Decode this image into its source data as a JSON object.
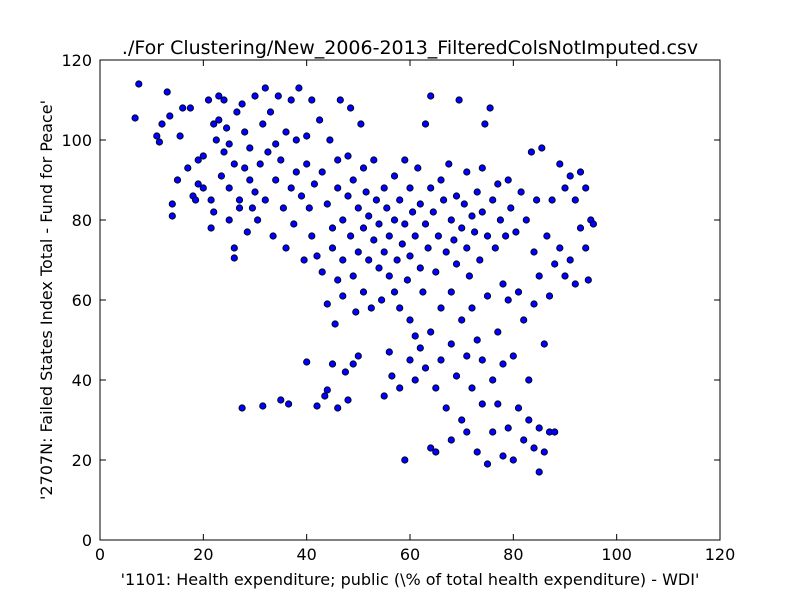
{
  "chart_data": {
    "type": "scatter",
    "title": "./For Clustering/New_2006-2013_FilteredColsNotImputed.csv",
    "xlabel": "'1101: Health expenditure; public  (\\% of total health expenditure) - WDI'",
    "ylabel": "'2707N: Failed States Index Total - Fund for Peace'",
    "xlim": [
      0,
      120
    ],
    "ylim": [
      0,
      120
    ],
    "xticks": [
      0,
      20,
      40,
      60,
      80,
      100,
      120
    ],
    "yticks": [
      0,
      20,
      40,
      60,
      80,
      100,
      120
    ],
    "grid": false,
    "marker_color": "#0000ff",
    "marker_edge_color": "#000000",
    "series": [
      {
        "points": [
          [
            6.8,
            105.5
          ],
          [
            7.5,
            114
          ],
          [
            11,
            101
          ],
          [
            11.5,
            99.5
          ],
          [
            12,
            104
          ],
          [
            13,
            112
          ],
          [
            13.5,
            106
          ],
          [
            14,
            84
          ],
          [
            14,
            81
          ],
          [
            15,
            90
          ],
          [
            15.5,
            101
          ],
          [
            16,
            108
          ],
          [
            17,
            93
          ],
          [
            17.5,
            108
          ],
          [
            18,
            86
          ],
          [
            18.5,
            85
          ],
          [
            19,
            95
          ],
          [
            19,
            89
          ],
          [
            20,
            96
          ],
          [
            20,
            88
          ],
          [
            21,
            110
          ],
          [
            21.5,
            85
          ],
          [
            21.5,
            78
          ],
          [
            22,
            104
          ],
          [
            22,
            82
          ],
          [
            22.5,
            100
          ],
          [
            23,
            111
          ],
          [
            23,
            105
          ],
          [
            23.5,
            91
          ],
          [
            24,
            110
          ],
          [
            24,
            97
          ],
          [
            24.5,
            103
          ],
          [
            25,
            99
          ],
          [
            25,
            88
          ],
          [
            25,
            80
          ],
          [
            26,
            94
          ],
          [
            26,
            73
          ],
          [
            26,
            70.5
          ],
          [
            26.5,
            107
          ],
          [
            27,
            85
          ],
          [
            27,
            83
          ],
          [
            27.5,
            109
          ],
          [
            27.5,
            33
          ],
          [
            28,
            102
          ],
          [
            28,
            93
          ],
          [
            28.5,
            77
          ],
          [
            29,
            98
          ],
          [
            29,
            90
          ],
          [
            29.5,
            83
          ],
          [
            30,
            111
          ],
          [
            30,
            87
          ],
          [
            30.5,
            80
          ],
          [
            31,
            94
          ],
          [
            31.5,
            104
          ],
          [
            31.5,
            33.5
          ],
          [
            32,
            113
          ],
          [
            32,
            85
          ],
          [
            32.5,
            97
          ],
          [
            33,
            107
          ],
          [
            33.5,
            76
          ],
          [
            34,
            99
          ],
          [
            34,
            90
          ],
          [
            34.5,
            111
          ],
          [
            35,
            95
          ],
          [
            35,
            35
          ],
          [
            35.5,
            83
          ],
          [
            36,
            102
          ],
          [
            36,
            73
          ],
          [
            36.5,
            34
          ],
          [
            37,
            110
          ],
          [
            37,
            88
          ],
          [
            37.5,
            79
          ],
          [
            38,
            100
          ],
          [
            38,
            92
          ],
          [
            38.5,
            113
          ],
          [
            39,
            86
          ],
          [
            39.5,
            70
          ],
          [
            40,
            101
          ],
          [
            40,
            94
          ],
          [
            40,
            44.5
          ],
          [
            40.5,
            83
          ],
          [
            41,
            110
          ],
          [
            41,
            76
          ],
          [
            41.5,
            89
          ],
          [
            42,
            71
          ],
          [
            42,
            33.5
          ],
          [
            42.5,
            105
          ],
          [
            43,
            92
          ],
          [
            43,
            67
          ],
          [
            43.5,
            36
          ],
          [
            44,
            84
          ],
          [
            44,
            59
          ],
          [
            44,
            37.5
          ],
          [
            44.5,
            100
          ],
          [
            45,
            78
          ],
          [
            45,
            73
          ],
          [
            45,
            44
          ],
          [
            45.5,
            54
          ],
          [
            46,
            95
          ],
          [
            46,
            88
          ],
          [
            46,
            65
          ],
          [
            46,
            33
          ],
          [
            46.5,
            110
          ],
          [
            47,
            80
          ],
          [
            47,
            70
          ],
          [
            47,
            61
          ],
          [
            47.5,
            42
          ],
          [
            48,
            96
          ],
          [
            48,
            86
          ],
          [
            48,
            35
          ],
          [
            48.5,
            108
          ],
          [
            48.5,
            76
          ],
          [
            49,
            90
          ],
          [
            49,
            66
          ],
          [
            49,
            44
          ],
          [
            49.5,
            57
          ],
          [
            50,
            83
          ],
          [
            50,
            72
          ],
          [
            50,
            46
          ],
          [
            50.5,
            104
          ],
          [
            51,
            93
          ],
          [
            51,
            78
          ],
          [
            51,
            62
          ],
          [
            51.5,
            87
          ],
          [
            52,
            70
          ],
          [
            52,
            81
          ],
          [
            52.5,
            58
          ],
          [
            53,
            75
          ],
          [
            53,
            95
          ],
          [
            53.5,
            85
          ],
          [
            54,
            68
          ],
          [
            54,
            79
          ],
          [
            54.5,
            60
          ],
          [
            55,
            88
          ],
          [
            55,
            72
          ],
          [
            55,
            36
          ],
          [
            55.5,
            83
          ],
          [
            56,
            76
          ],
          [
            56,
            66
          ],
          [
            56,
            47
          ],
          [
            56.5,
            41
          ],
          [
            57,
            91
          ],
          [
            57,
            80
          ],
          [
            57,
            62
          ],
          [
            57.5,
            70
          ],
          [
            58,
            85
          ],
          [
            58,
            58
          ],
          [
            58,
            38
          ],
          [
            58.5,
            74
          ],
          [
            59,
            95
          ],
          [
            59,
            79
          ],
          [
            59,
            20
          ],
          [
            59.5,
            65
          ],
          [
            60,
            88
          ],
          [
            60,
            71
          ],
          [
            60,
            55
          ],
          [
            60,
            45
          ],
          [
            60.5,
            82
          ],
          [
            61,
            76
          ],
          [
            61,
            51
          ],
          [
            61,
            40
          ],
          [
            61.5,
            93
          ],
          [
            62,
            84
          ],
          [
            62,
            68
          ],
          [
            62,
            48
          ],
          [
            62.5,
            62
          ],
          [
            63,
            104
          ],
          [
            63,
            79
          ],
          [
            63,
            43
          ],
          [
            63.5,
            73
          ],
          [
            64,
            111
          ],
          [
            64,
            88
          ],
          [
            64,
            52
          ],
          [
            64,
            23
          ],
          [
            64.5,
            82
          ],
          [
            65,
            67
          ],
          [
            65,
            38
          ],
          [
            65,
            22
          ],
          [
            65.5,
            76
          ],
          [
            66,
            90
          ],
          [
            66,
            58
          ],
          [
            66,
            45
          ],
          [
            66.5,
            85
          ],
          [
            67,
            72
          ],
          [
            67,
            33
          ],
          [
            67.5,
            94
          ],
          [
            68,
            80
          ],
          [
            68,
            62
          ],
          [
            68,
            49
          ],
          [
            68,
            25
          ],
          [
            68.5,
            75
          ],
          [
            69,
            86
          ],
          [
            69,
            69
          ],
          [
            69,
            41
          ],
          [
            69.5,
            110
          ],
          [
            70,
            78
          ],
          [
            70,
            55
          ],
          [
            70,
            30
          ],
          [
            70.5,
            84
          ],
          [
            71,
            92
          ],
          [
            71,
            73
          ],
          [
            71,
            46
          ],
          [
            71,
            27
          ],
          [
            71.5,
            66
          ],
          [
            72,
            81
          ],
          [
            72,
            58
          ],
          [
            72,
            38
          ],
          [
            72.5,
            77
          ],
          [
            73,
            87
          ],
          [
            73,
            50
          ],
          [
            73,
            22
          ],
          [
            73.5,
            70
          ],
          [
            74,
            93
          ],
          [
            74,
            82
          ],
          [
            74,
            45
          ],
          [
            74,
            34
          ],
          [
            74.5,
            104
          ],
          [
            75,
            76
          ],
          [
            75,
            61
          ],
          [
            75,
            19
          ],
          [
            75.5,
            108
          ],
          [
            76,
            85
          ],
          [
            76,
            40
          ],
          [
            76,
            27
          ],
          [
            76.5,
            73
          ],
          [
            77,
            89
          ],
          [
            77,
            52
          ],
          [
            77,
            34
          ],
          [
            77.5,
            80
          ],
          [
            78,
            64
          ],
          [
            78,
            44
          ],
          [
            78,
            21
          ],
          [
            78.5,
            76
          ],
          [
            79,
            90
          ],
          [
            79,
            60
          ],
          [
            79,
            28
          ],
          [
            79.5,
            83
          ],
          [
            80,
            46
          ],
          [
            80,
            20
          ],
          [
            80.5,
            77
          ],
          [
            81,
            62
          ],
          [
            81,
            33
          ],
          [
            81.5,
            87
          ],
          [
            82,
            55
          ],
          [
            82,
            25
          ],
          [
            82.5,
            80
          ],
          [
            83,
            40
          ],
          [
            83,
            30
          ],
          [
            83.5,
            97
          ],
          [
            84,
            72
          ],
          [
            84,
            59
          ],
          [
            84,
            23
          ],
          [
            84.5,
            85
          ],
          [
            85,
            66
          ],
          [
            85,
            28
          ],
          [
            85,
            17
          ],
          [
            85.5,
            98
          ],
          [
            86,
            49
          ],
          [
            86,
            22
          ],
          [
            86.5,
            76
          ],
          [
            87,
            61
          ],
          [
            87,
            27
          ],
          [
            87.5,
            85
          ],
          [
            88,
            69
          ],
          [
            88,
            27
          ],
          [
            89,
            94
          ],
          [
            89,
            73
          ],
          [
            90,
            66
          ],
          [
            90,
            88
          ],
          [
            91,
            91
          ],
          [
            91,
            70
          ],
          [
            92,
            64
          ],
          [
            92,
            85
          ],
          [
            93,
            78
          ],
          [
            93,
            92
          ],
          [
            94,
            73
          ],
          [
            94,
            88
          ],
          [
            94.5,
            65
          ],
          [
            95,
            80
          ],
          [
            95.5,
            79
          ]
        ]
      }
    ]
  }
}
